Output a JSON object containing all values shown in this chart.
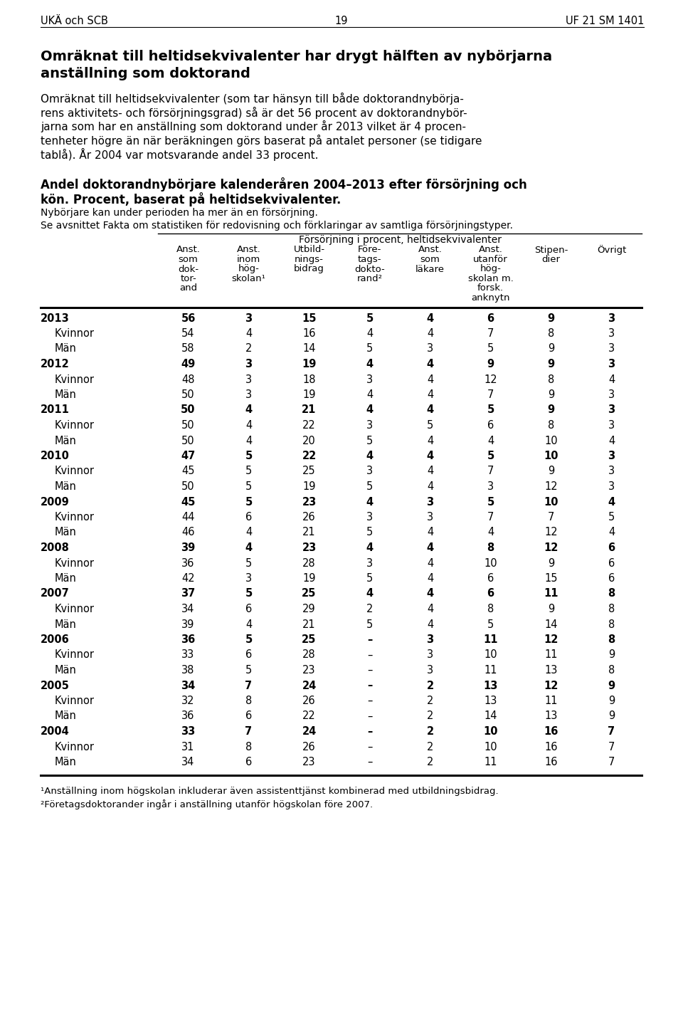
{
  "header_left": "UKÄ och SCB",
  "header_center": "19",
  "header_right": "UF 21 SM 1401",
  "title_line1": "Omräknat till heltidsekvivalenter har drygt hälften av nybörjarna",
  "title_line2": "anställning som doktorand",
  "body_lines": [
    "Omräknat till heltidsekvivalenter (som tar hänsyn till både doktorandnybörja-",
    "rens aktivitets- och försörjningsgrad) så är det 56 procent av doktorandnybör-",
    "jarna som har en anställning som doktorand under år 2013 vilket är 4 procen-",
    "tenheter högre än när beräkningen görs baserat på antalet personer (se tidigare",
    "tablå). År 2004 var motsvarande andel 33 procent."
  ],
  "table_title_line1": "Andel doktorandnybörjare kalenderåren 2004–2013 efter försörjning och",
  "table_title_line2": "kön. Procent, baserat på heltidsekvivalenter.",
  "table_subtitle1": "Nybörjare kan under perioden ha mer än en försörjning.",
  "table_subtitle2": "Se avsnittet Fakta om statistiken för redovisning och förklaringar av samtliga försörjningstyper.",
  "span_header": "Försörjning i procent, heltidsekvivalenter",
  "col_headers": [
    [
      "Anst.",
      "som",
      "dok-",
      "tor-",
      "and"
    ],
    [
      "Anst.",
      "inom",
      "hög-",
      "skolan¹"
    ],
    [
      "Utbild-",
      "nings-",
      "bidrag"
    ],
    [
      "Före-",
      "tags-",
      "dokto-",
      "rand²"
    ],
    [
      "Anst.",
      "som",
      "läkare"
    ],
    [
      "Anst.",
      "utanför",
      "hög-",
      "skolan m.",
      "forsk.",
      "anknytn"
    ],
    [
      "Stipen-",
      "dier"
    ],
    [
      "Övrigt"
    ]
  ],
  "rows": [
    {
      "label": "2013",
      "bold": true,
      "values": [
        "56",
        "3",
        "15",
        "5",
        "4",
        "6",
        "9",
        "3"
      ]
    },
    {
      "label": "Kvinnor",
      "bold": false,
      "values": [
        "54",
        "4",
        "16",
        "4",
        "4",
        "7",
        "8",
        "3"
      ]
    },
    {
      "label": "Män",
      "bold": false,
      "values": [
        "58",
        "2",
        "14",
        "5",
        "3",
        "5",
        "9",
        "3"
      ]
    },
    {
      "label": "2012",
      "bold": true,
      "values": [
        "49",
        "3",
        "19",
        "4",
        "4",
        "9",
        "9",
        "3"
      ]
    },
    {
      "label": "Kvinnor",
      "bold": false,
      "values": [
        "48",
        "3",
        "18",
        "3",
        "4",
        "12",
        "8",
        "4"
      ]
    },
    {
      "label": "Män",
      "bold": false,
      "values": [
        "50",
        "3",
        "19",
        "4",
        "4",
        "7",
        "9",
        "3"
      ]
    },
    {
      "label": "2011",
      "bold": true,
      "values": [
        "50",
        "4",
        "21",
        "4",
        "4",
        "5",
        "9",
        "3"
      ]
    },
    {
      "label": "Kvinnor",
      "bold": false,
      "values": [
        "50",
        "4",
        "22",
        "3",
        "5",
        "6",
        "8",
        "3"
      ]
    },
    {
      "label": "Män",
      "bold": false,
      "values": [
        "50",
        "4",
        "20",
        "5",
        "4",
        "4",
        "10",
        "4"
      ]
    },
    {
      "label": "2010",
      "bold": true,
      "values": [
        "47",
        "5",
        "22",
        "4",
        "4",
        "5",
        "10",
        "3"
      ]
    },
    {
      "label": "Kvinnor",
      "bold": false,
      "values": [
        "45",
        "5",
        "25",
        "3",
        "4",
        "7",
        "9",
        "3"
      ]
    },
    {
      "label": "Män",
      "bold": false,
      "values": [
        "50",
        "5",
        "19",
        "5",
        "4",
        "3",
        "12",
        "3"
      ]
    },
    {
      "label": "2009",
      "bold": true,
      "values": [
        "45",
        "5",
        "23",
        "4",
        "3",
        "5",
        "10",
        "4"
      ]
    },
    {
      "label": "Kvinnor",
      "bold": false,
      "values": [
        "44",
        "6",
        "26",
        "3",
        "3",
        "7",
        "7",
        "5"
      ]
    },
    {
      "label": "Män",
      "bold": false,
      "values": [
        "46",
        "4",
        "21",
        "5",
        "4",
        "4",
        "12",
        "4"
      ]
    },
    {
      "label": "2008",
      "bold": true,
      "values": [
        "39",
        "4",
        "23",
        "4",
        "4",
        "8",
        "12",
        "6"
      ]
    },
    {
      "label": "Kvinnor",
      "bold": false,
      "values": [
        "36",
        "5",
        "28",
        "3",
        "4",
        "10",
        "9",
        "6"
      ]
    },
    {
      "label": "Män",
      "bold": false,
      "values": [
        "42",
        "3",
        "19",
        "5",
        "4",
        "6",
        "15",
        "6"
      ]
    },
    {
      "label": "2007",
      "bold": true,
      "values": [
        "37",
        "5",
        "25",
        "4",
        "4",
        "6",
        "11",
        "8"
      ]
    },
    {
      "label": "Kvinnor",
      "bold": false,
      "values": [
        "34",
        "6",
        "29",
        "2",
        "4",
        "8",
        "9",
        "8"
      ]
    },
    {
      "label": "Män",
      "bold": false,
      "values": [
        "39",
        "4",
        "21",
        "5",
        "4",
        "5",
        "14",
        "8"
      ]
    },
    {
      "label": "2006",
      "bold": true,
      "values": [
        "36",
        "5",
        "25",
        "–",
        "3",
        "11",
        "12",
        "8"
      ]
    },
    {
      "label": "Kvinnor",
      "bold": false,
      "values": [
        "33",
        "6",
        "28",
        "–",
        "3",
        "10",
        "11",
        "9"
      ]
    },
    {
      "label": "Män",
      "bold": false,
      "values": [
        "38",
        "5",
        "23",
        "–",
        "3",
        "11",
        "13",
        "8"
      ]
    },
    {
      "label": "2005",
      "bold": true,
      "values": [
        "34",
        "7",
        "24",
        "–",
        "2",
        "13",
        "12",
        "9"
      ]
    },
    {
      "label": "Kvinnor",
      "bold": false,
      "values": [
        "32",
        "8",
        "26",
        "–",
        "2",
        "13",
        "11",
        "9"
      ]
    },
    {
      "label": "Män",
      "bold": false,
      "values": [
        "36",
        "6",
        "22",
        "–",
        "2",
        "14",
        "13",
        "9"
      ]
    },
    {
      "label": "2004",
      "bold": true,
      "values": [
        "33",
        "7",
        "24",
        "–",
        "2",
        "10",
        "16",
        "7"
      ]
    },
    {
      "label": "Kvinnor",
      "bold": false,
      "values": [
        "31",
        "8",
        "26",
        "–",
        "2",
        "10",
        "16",
        "7"
      ]
    },
    {
      "label": "Män",
      "bold": false,
      "values": [
        "34",
        "6",
        "23",
        "–",
        "2",
        "11",
        "16",
        "7"
      ]
    }
  ],
  "footnote1": "¹Anställning inom högskolan inkluderar även assistenttjänst kombinerad med utbildningsbidrag.",
  "footnote2": "²Företagsdoktorander ingår i anställning utanför högskolan före 2007.",
  "bg_color": "#ffffff"
}
